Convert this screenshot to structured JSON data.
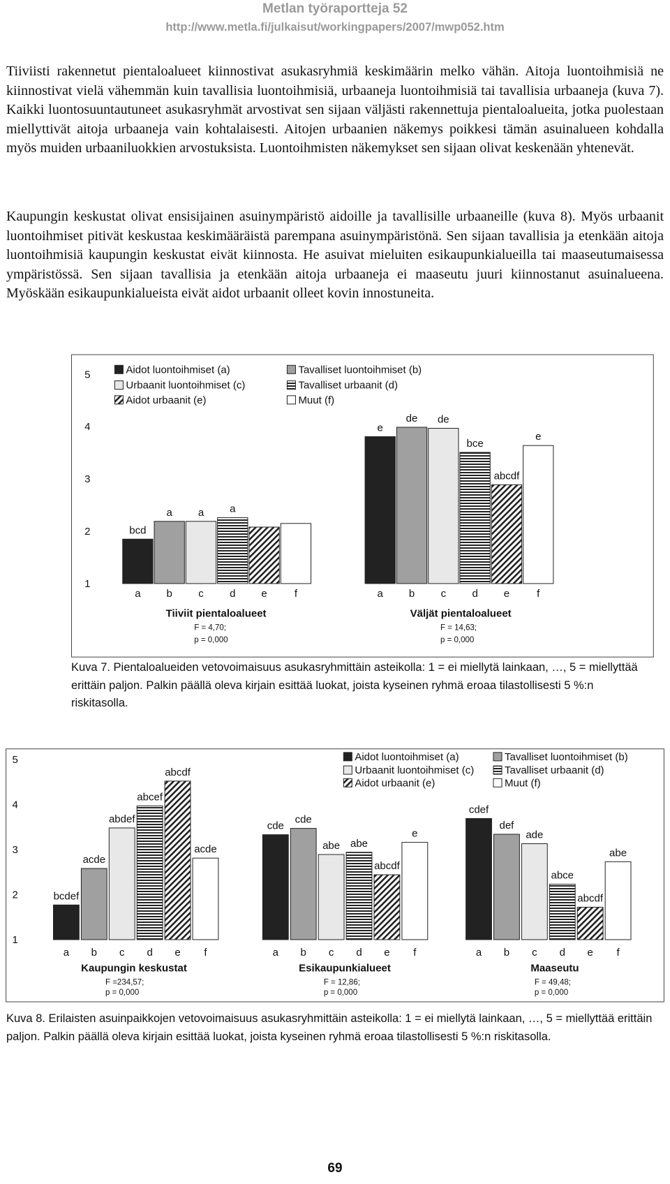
{
  "header": {
    "title": "Metlan työraportteja 52",
    "url": "http://www.metla.fi/julkaisut/workingpapers/2007/mwp052.htm"
  },
  "paragraphs": [
    "Tiiviisti rakennetut pientaloalueet kiinnostivat asukasryhmiä keskimäärin melko vähän. Aitoja luontoihmisiä ne kiinnostivat vielä vähemmän kuin tavallisia luontoihmisiä, urbaaneja luontoihmisiä tai tavallisia urbaaneja (kuva 7). Kaikki luontosuuntautuneet asukasryhmät arvostivat sen sijaan väljästi rakennettuja pientaloalueita, jotka puolestaan miellyttivät aitoja urbaaneja vain kohtalaisesti. Aitojen urbaanien näkemys poikkesi tämän asuinalueen kohdalla myös muiden urbaaniluokkien arvostuksista. Luontoihmisten näkemykset sen sijaan olivat keskenään yhtenevät.",
    "Kaupungin keskustat olivat ensisijainen asuinympäristö aidoille ja tavallisille urbaaneille (kuva 8). Myös urbaanit luontoihmiset pitivät keskustaa keskimääräistä parempana asuinympäristönä. Sen sijaan tavallisia ja etenkään aitoja luontoihmisiä kaupungin keskustat eivät kiinnosta. He asuivat mieluiten esikaupunkialueilla tai maaseutumaisessa ympäristössä. Sen sijaan tavallisia ja etenkään aitoja urbaaneja ei maaseutu juuri kiinnostanut asuinalueena. Myöskään esikaupunkialueista eivät aidot urbaanit olleet kovin innostuneita."
  ],
  "chart_data": [
    {
      "type": "bar",
      "categories": [
        "Tiiviit pientaloalueet",
        "Väljät pientaloalueet"
      ],
      "group_notes": [
        [
          "F = 4,70;",
          "p = 0,000"
        ],
        [
          "F = 14,63;",
          "p = 0,000"
        ]
      ],
      "bar_codes": [
        "a",
        "b",
        "c",
        "d",
        "e",
        "f"
      ],
      "ylim": [
        1,
        5
      ],
      "yticks": [
        1,
        2,
        3,
        4,
        5
      ],
      "grid": false,
      "series": [
        {
          "name": "Aidot luontoihmiset (a)",
          "color": "#222222",
          "pattern": "solid",
          "values": [
            1.85,
            3.81
          ],
          "letters": [
            "bcd",
            "e"
          ]
        },
        {
          "name": "Tavalliset luontoihmiset (b)",
          "color": "#a0a0a0",
          "pattern": "solid",
          "values": [
            2.19,
            3.99
          ],
          "letters": [
            "a",
            "de"
          ]
        },
        {
          "name": "Urbaanit luontoihmiset (c)",
          "color": "#e8e8e8",
          "pattern": "solid",
          "values": [
            2.19,
            3.97
          ],
          "letters": [
            "a",
            "de"
          ]
        },
        {
          "name": "Tavalliset urbaanit (d)",
          "color": "#222222",
          "pattern": "hlines",
          "values": [
            2.26,
            3.51
          ],
          "letters": [
            "a",
            "bce"
          ]
        },
        {
          "name": "Aidot urbaanit (e)",
          "color": "#222222",
          "pattern": "diag",
          "values": [
            2.08,
            2.89
          ],
          "letters": [
            null,
            "abcdf"
          ]
        },
        {
          "name": "Muut (f)",
          "color": "#ffffff",
          "pattern": "solid",
          "values": [
            2.15,
            3.64
          ],
          "letters": [
            null,
            "e"
          ]
        }
      ]
    },
    {
      "type": "bar",
      "categories": [
        "Kaupungin keskustat",
        "Esikaupunkialueet",
        "Maaseutu"
      ],
      "group_notes": [
        [
          "F =234,57;",
          "p = 0,000"
        ],
        [
          "F = 12,86;",
          "p = 0,000"
        ],
        [
          "F = 49,48;",
          "p = 0,000"
        ]
      ],
      "bar_codes": [
        "a",
        "b",
        "c",
        "d",
        "e",
        "f"
      ],
      "ylim": [
        1,
        5
      ],
      "yticks": [
        1,
        2,
        3,
        4,
        5
      ],
      "grid": false,
      "series": [
        {
          "name": "Aidot luontoihmiset (a)",
          "color": "#222222",
          "pattern": "solid",
          "values": [
            1.77,
            3.33,
            3.69
          ],
          "letters": [
            "bcdef",
            "cde",
            "cdef"
          ]
        },
        {
          "name": "Tavalliset luontoihmiset (b)",
          "color": "#a0a0a0",
          "pattern": "solid",
          "values": [
            2.58,
            3.47,
            3.34
          ],
          "letters": [
            "acde",
            "cde",
            "def"
          ]
        },
        {
          "name": "Urbaanit luontoihmiset (c)",
          "color": "#e8e8e8",
          "pattern": "solid",
          "values": [
            3.48,
            2.89,
            3.13
          ],
          "letters": [
            "abdef",
            "abe",
            "ade"
          ]
        },
        {
          "name": "Tavalliset urbaanit (d)",
          "color": "#222222",
          "pattern": "hlines",
          "values": [
            3.97,
            2.94,
            2.23
          ],
          "letters": [
            "abcef",
            "abe",
            "abce"
          ]
        },
        {
          "name": "Aidot urbaanit (e)",
          "color": "#222222",
          "pattern": "diag",
          "values": [
            4.52,
            2.44,
            1.72
          ],
          "letters": [
            "abcdf",
            "abcdf",
            "abcdf"
          ]
        },
        {
          "name": "Muut (f)",
          "color": "#ffffff",
          "pattern": "solid",
          "values": [
            2.81,
            3.16,
            2.73
          ],
          "letters": [
            "acde",
            "e",
            "abe"
          ]
        }
      ]
    }
  ],
  "captions": [
    "Kuva 7. Pientaloalueiden vetovoimaisuus asukasryhmittäin asteikolla: 1 = ei miellytä lainkaan, …, 5 = miellyttää erittäin paljon. Palkin päällä oleva kirjain esittää luokat, joista kyseinen ryhmä eroaa tilastollisesti 5 %:n riskitasolla.",
    "Kuva 8. Erilaisten asuinpaikkojen vetovoimaisuus asukasryhmittäin asteikolla: 1 = ei miellytä lainkaan, …, 5 = miellyttää erittäin paljon. Palkin päällä oleva kirjain esittää luokat, joista kyseinen ryhmä eroaa tilastollisesti 5 %:n riskitasolla."
  ],
  "page_number": "69"
}
